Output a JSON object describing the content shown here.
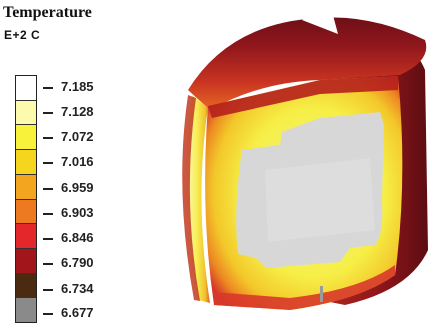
{
  "legend": {
    "title": "Temperature",
    "units": "E+2  C",
    "entries": [
      {
        "label": "7.185",
        "color": "#ffffff"
      },
      {
        "label": "7.128",
        "color": "#fbfaad"
      },
      {
        "label": "7.072",
        "color": "#f8f23a"
      },
      {
        "label": "7.016",
        "color": "#f6d51f"
      },
      {
        "label": "6.959",
        "color": "#f4a51f"
      },
      {
        "label": "6.903",
        "color": "#ed7a20"
      },
      {
        "label": "6.846",
        "color": "#e3272a"
      },
      {
        "label": "6.790",
        "color": "#a1151b"
      },
      {
        "label": "6.734",
        "color": "#4a2b12"
      },
      {
        "label": "6.677",
        "color": "#8a8a8a"
      }
    ]
  }
}
